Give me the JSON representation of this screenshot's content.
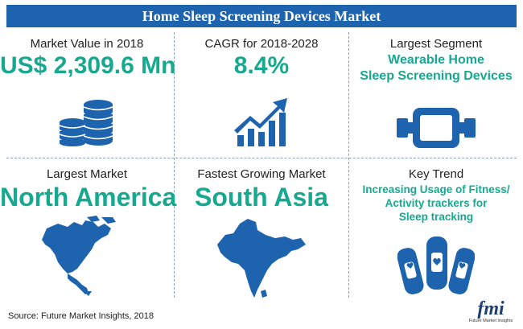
{
  "header": {
    "title": "Home Sleep Screening Devices Market"
  },
  "cards": {
    "market_value": {
      "label": "Market Value in 2018",
      "value": "US$ 2,309.6 Mn",
      "icon": "coins-stack-icon"
    },
    "cagr": {
      "label": "CAGR for 2018-2028",
      "value": "8.4%",
      "icon": "growth-chart-icon"
    },
    "largest_segment": {
      "label": "Largest Segment",
      "value_line1": "Wearable Home",
      "value_line2": "Sleep Screening Devices",
      "icon": "wearable-device-icon"
    },
    "largest_market": {
      "label": "Largest Market",
      "value": "North America",
      "icon": "north-america-map-icon"
    },
    "fastest_growing": {
      "label": "Fastest Growing Market",
      "value": "South Asia",
      "icon": "south-asia-map-icon"
    },
    "key_trend": {
      "label": "Key Trend",
      "value_line1": "Increasing Usage of Fitness/",
      "value_line2": "Activity trackers for",
      "value_line3": "Sleep tracking",
      "icon": "fitness-bands-icon"
    }
  },
  "footer": {
    "source": "Source: Future Market Insights, 2018",
    "logo_text": "fmi",
    "logo_subtitle": "Future Market Insights"
  },
  "colors": {
    "banner": "#1e63ad",
    "accent": "#17a98f",
    "icon": "#1e63ad"
  }
}
